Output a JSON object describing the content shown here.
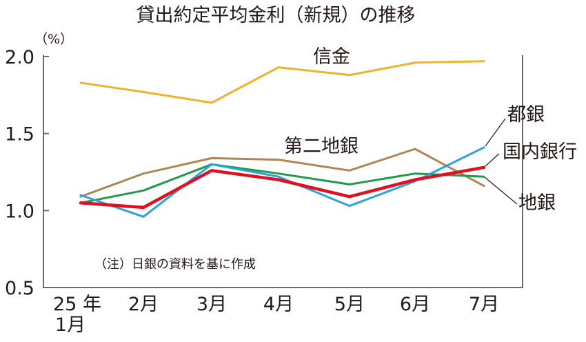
{
  "chart_data": {
    "type": "line",
    "title": "貸出約定平均金利（新規）の推移",
    "unit": "（%）",
    "categories": [
      "25 年\n1月",
      "2月",
      "3月",
      "4月",
      "5月",
      "6月",
      "7月"
    ],
    "ylim": [
      0.5,
      2.0
    ],
    "yticks": [
      "0.5",
      "1.0",
      "1.5",
      "2.0"
    ],
    "grid": false,
    "series": [
      {
        "name": "信金",
        "color": "#f0b22a",
        "values": [
          1.83,
          1.77,
          1.7,
          1.93,
          1.88,
          1.96,
          1.97
        ]
      },
      {
        "name": "第二地銀",
        "color": "#b08552",
        "values": [
          1.09,
          1.24,
          1.34,
          1.33,
          1.26,
          1.4,
          1.16
        ]
      },
      {
        "name": "地銀",
        "color": "#1d9a4b",
        "values": [
          1.05,
          1.13,
          1.3,
          1.24,
          1.17,
          1.24,
          1.22
        ]
      },
      {
        "name": "都銀",
        "color": "#2aa3dc",
        "values": [
          1.1,
          0.96,
          1.3,
          1.22,
          1.03,
          1.19,
          1.41
        ]
      },
      {
        "name": "国内銀行",
        "color": "#e0101f",
        "values": [
          1.05,
          1.02,
          1.26,
          1.2,
          1.09,
          1.2,
          1.28
        ]
      }
    ],
    "note": "（注）日銀の資料を基に作成"
  }
}
